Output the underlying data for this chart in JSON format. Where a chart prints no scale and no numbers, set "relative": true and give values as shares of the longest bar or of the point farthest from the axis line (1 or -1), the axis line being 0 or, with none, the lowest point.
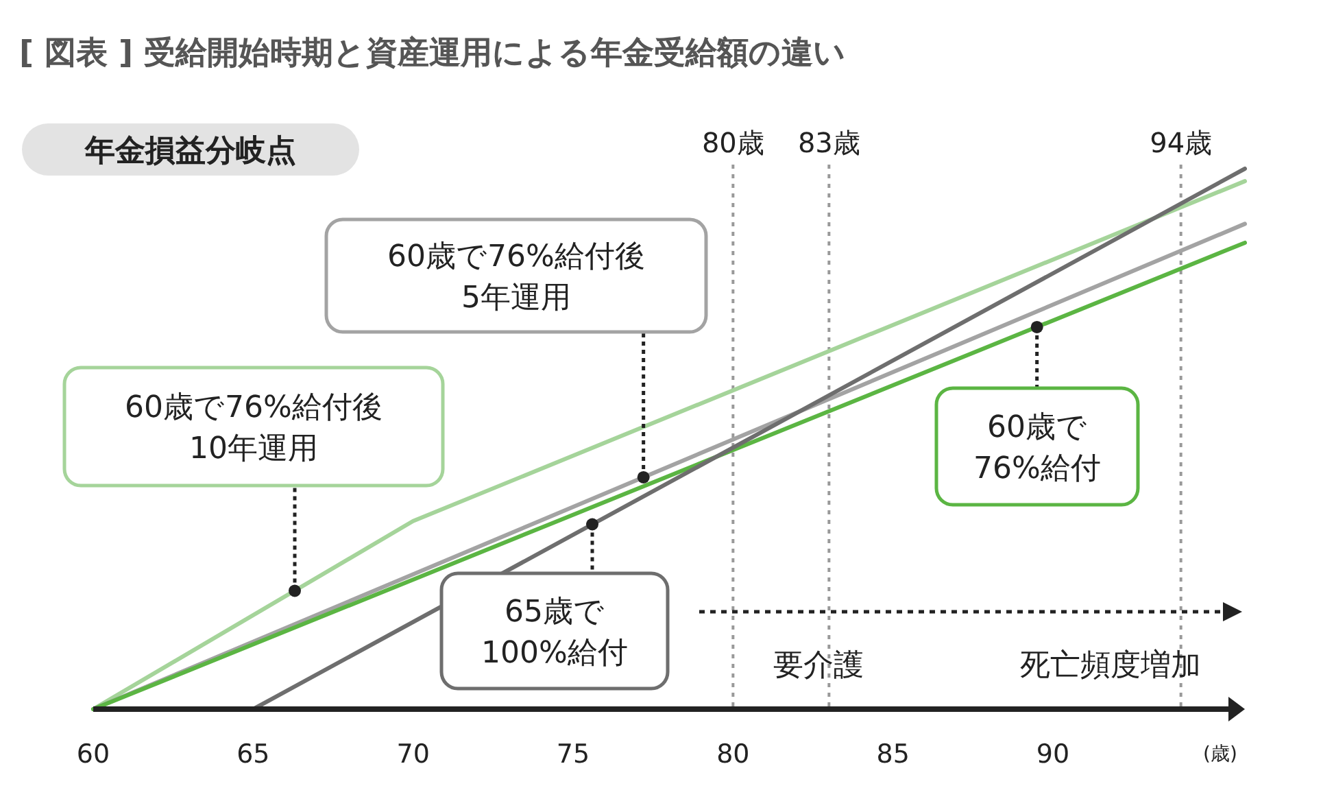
{
  "chart_data": {
    "type": "line",
    "title": "[ 図表 ] 受給開始時期と資産運用による年金受給額の違い",
    "xlabel": "(歳)",
    "relative": true,
    "xlim": [
      60,
      96
    ],
    "xticks": [
      60,
      65,
      70,
      75,
      80,
      85,
      90
    ],
    "line_style": "solid",
    "series": [
      {
        "color": "#a5d49a",
        "x": [
          60,
          70,
          96
        ],
        "values": [
          0,
          0.348,
          0.977
        ]
      },
      {
        "color": "#a3a3a3",
        "x": [
          60,
          96
        ],
        "values": [
          0,
          0.898
        ]
      },
      {
        "color": "#5bb543",
        "x": [
          60,
          96
        ],
        "values": [
          0,
          0.863
        ]
      },
      {
        "color": "#6e6e6e",
        "x": [
          65,
          96
        ],
        "values": [
          0,
          1
        ]
      }
    ],
    "ref_lines": [
      {
        "axis": "x",
        "value": 80,
        "label": "80歳",
        "line_style": "dotted",
        "color": "#999999"
      },
      {
        "axis": "x",
        "value": 83,
        "label": "83歳",
        "line_style": "dotted",
        "color": "#999999"
      },
      {
        "axis": "x",
        "value": 94,
        "label": "94歳",
        "line_style": "dotted",
        "color": "#999999"
      }
    ],
    "annotations": [
      {
        "text": "60歳で76%給付後\n10年運用",
        "x": 66.3,
        "y": 0.219
      },
      {
        "text": "60歳で76%給付後\n5年運用",
        "x": 77.2,
        "y": 0.429
      },
      {
        "text": "65歳で\n100%給付",
        "x": 75.6,
        "y": 0.342
      },
      {
        "text": "60歳で\n76%給付",
        "x": 89.5,
        "y": 0.707
      },
      "年金損益分岐点",
      "要介護",
      "死亡頻度増加"
    ]
  }
}
